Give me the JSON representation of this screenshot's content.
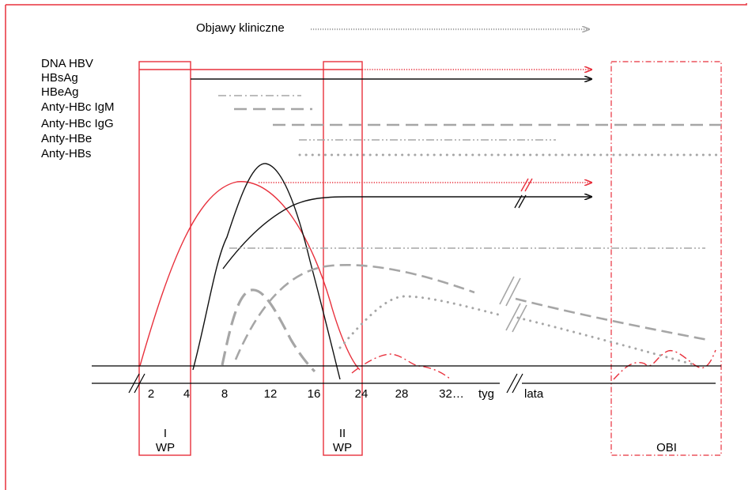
{
  "clinical_symptoms_label": "Objawy kliniczne",
  "marker_labels": [
    "DNA HBV",
    "HBsAg",
    "HBeAg",
    "Anty-HBc IgM",
    "Anty-HBc IgG",
    "Anty-HBe",
    "Anty-HBs"
  ],
  "time_axis": {
    "ticks": [
      "2",
      "4",
      "8",
      "12",
      "16",
      "24",
      "28",
      "32…",
      "tyg"
    ],
    "after_break": "lata"
  },
  "windows": [
    {
      "roman": "I",
      "label": "WP"
    },
    {
      "roman": "II",
      "label": "WP"
    },
    {
      "roman": "",
      "label": "OBI"
    }
  ],
  "colors": {
    "frame": "#e8303c",
    "dna": "#e8303c",
    "hbsag": "#111111",
    "antibody": "#a6a6a6",
    "grid": "#000000"
  }
}
